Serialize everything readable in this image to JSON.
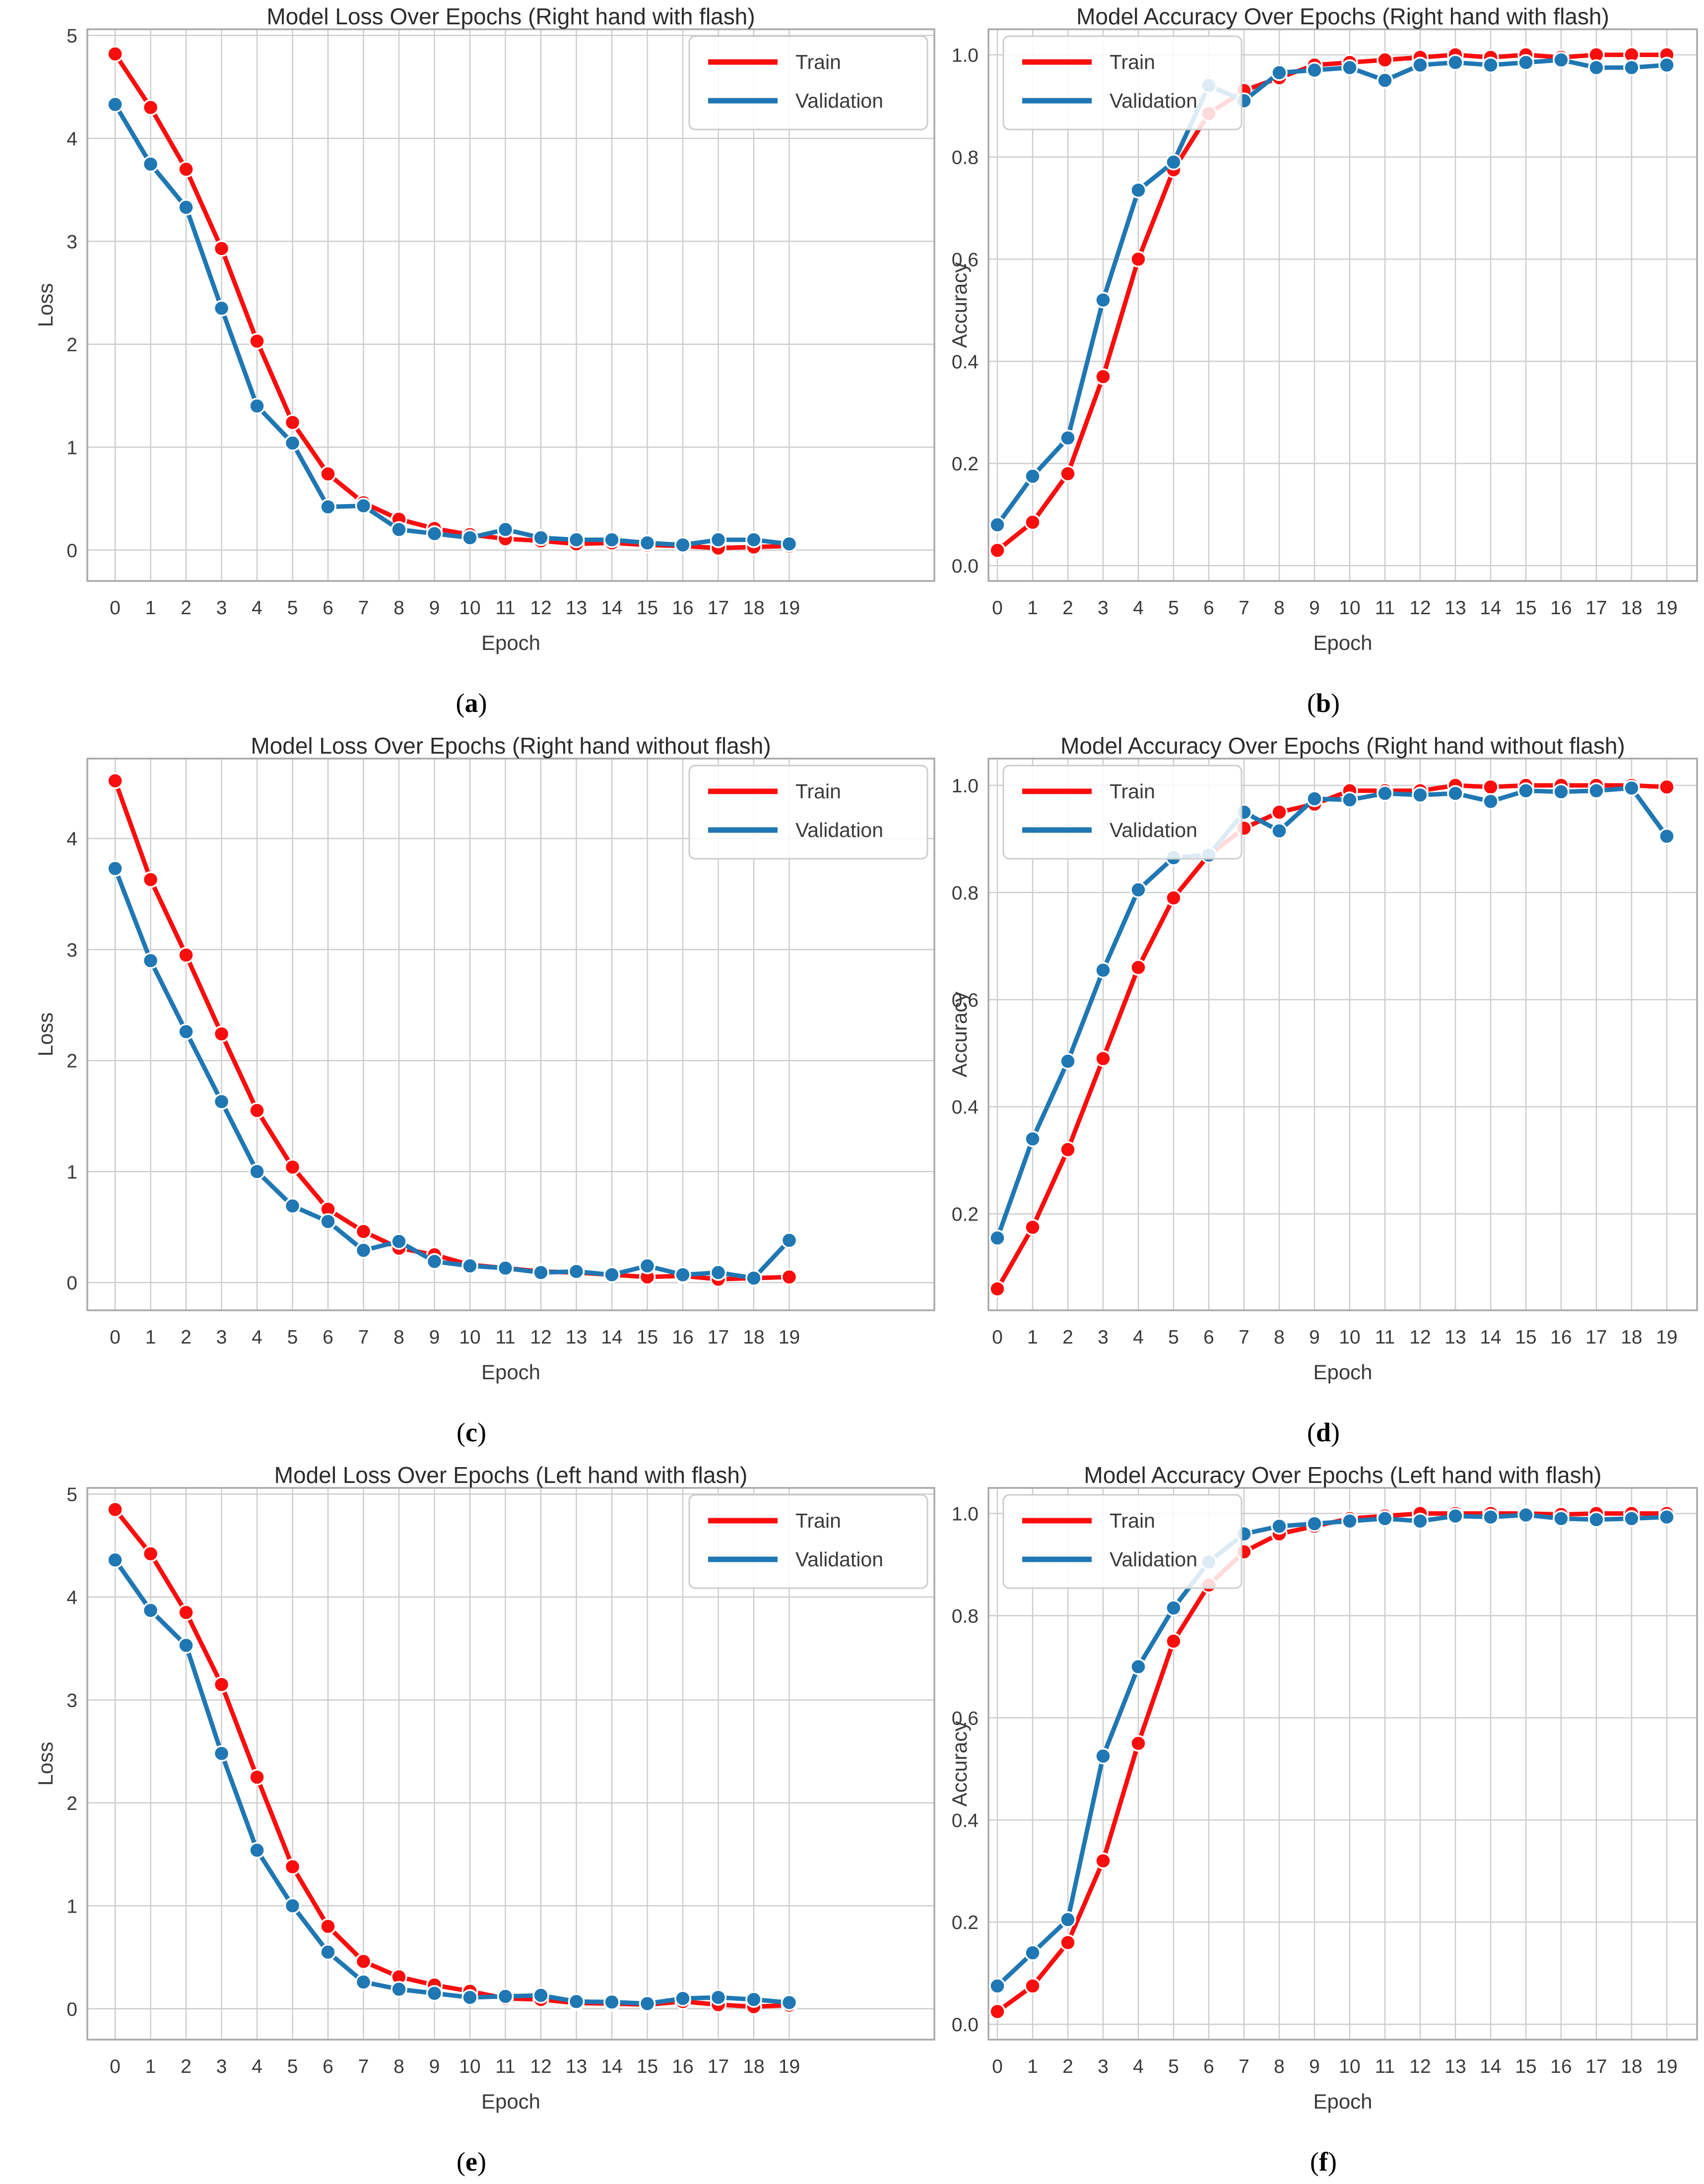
{
  "figure": {
    "background": "#ffffff"
  },
  "colors": {
    "train": "#fa0d0d",
    "validation": "#1f77b4",
    "grid": "#cdcdcd",
    "spine": "#a9a9a9",
    "text": "#3a3a3a",
    "legend_border": "#cccccc",
    "legend_bg": "rgba(255,255,255,0.85)",
    "marker_edge": "#ffffff"
  },
  "legend": {
    "train_label": "Train",
    "validation_label": "Validation"
  },
  "chart_data": [
    {
      "type": "line",
      "title": "Model Loss Over Epochs (Right hand with flash)",
      "xlabel": "Epoch",
      "ylabel": "Loss",
      "x": [
        0,
        1,
        2,
        3,
        4,
        5,
        6,
        7,
        8,
        9,
        10,
        11,
        12,
        13,
        14,
        15,
        16,
        17,
        18,
        19
      ],
      "xtick_labels": [
        "0",
        "1",
        "2",
        "3",
        "4",
        "5",
        "6",
        "7",
        "8",
        "9",
        "10",
        "11",
        "12",
        "13",
        "14",
        "15",
        "16",
        "17",
        "18",
        "19"
      ],
      "yticks": [
        0,
        1,
        2,
        3,
        4,
        5
      ],
      "ytick_labels": [
        "0",
        "1",
        "2",
        "3",
        "4",
        "5"
      ],
      "ylim": [
        -0.3,
        5.06
      ],
      "legend_pos": "right",
      "grid": true,
      "caption": {
        "open": "(",
        "letter": "a",
        "close": ")"
      },
      "series": [
        {
          "name": "Train",
          "color_key": "train",
          "values": [
            4.82,
            4.3,
            3.7,
            2.93,
            2.03,
            1.24,
            0.74,
            0.46,
            0.3,
            0.21,
            0.15,
            0.11,
            0.09,
            0.06,
            0.07,
            0.05,
            0.04,
            0.02,
            0.03,
            0.04
          ]
        },
        {
          "name": "Validation",
          "color_key": "validation",
          "values": [
            4.33,
            3.75,
            3.33,
            2.35,
            1.4,
            1.04,
            0.42,
            0.43,
            0.2,
            0.16,
            0.12,
            0.2,
            0.12,
            0.1,
            0.1,
            0.07,
            0.05,
            0.1,
            0.1,
            0.06
          ]
        }
      ]
    },
    {
      "type": "line",
      "title": "Model Accuracy Over Epochs (Right hand with flash)",
      "xlabel": "Epoch",
      "ylabel": "Accuracy",
      "x": [
        0,
        1,
        2,
        3,
        4,
        5,
        6,
        7,
        8,
        9,
        10,
        11,
        12,
        13,
        14,
        15,
        16,
        17,
        18,
        19
      ],
      "xtick_labels": [
        "0",
        "1",
        "2",
        "3",
        "4",
        "5",
        "6",
        "7",
        "8",
        "9",
        "10",
        "11",
        "12",
        "13",
        "14",
        "15",
        "16",
        "17",
        "18",
        "19"
      ],
      "yticks": [
        0.0,
        0.2,
        0.4,
        0.6,
        0.8,
        1.0
      ],
      "ytick_labels": [
        "0.0",
        "0.2",
        "0.4",
        "0.6",
        "0.8",
        "1.0"
      ],
      "ylim": [
        -0.03,
        1.05
      ],
      "legend_pos": "left",
      "grid": true,
      "caption": {
        "open": "(",
        "letter": "b",
        "close": ")"
      },
      "series": [
        {
          "name": "Train",
          "color_key": "train",
          "values": [
            0.03,
            0.085,
            0.18,
            0.37,
            0.6,
            0.775,
            0.885,
            0.93,
            0.955,
            0.98,
            0.985,
            0.99,
            0.995,
            1.0,
            0.995,
            1.0,
            0.995,
            1.0,
            1.0,
            1.0
          ]
        },
        {
          "name": "Validation",
          "color_key": "validation",
          "values": [
            0.08,
            0.175,
            0.25,
            0.52,
            0.735,
            0.79,
            0.94,
            0.91,
            0.965,
            0.97,
            0.975,
            0.95,
            0.98,
            0.985,
            0.98,
            0.985,
            0.99,
            0.975,
            0.975,
            0.98
          ]
        }
      ]
    },
    {
      "type": "line",
      "title": "Model Loss Over Epochs (Right hand without flash)",
      "xlabel": "Epoch",
      "ylabel": "Loss",
      "x": [
        0,
        1,
        2,
        3,
        4,
        5,
        6,
        7,
        8,
        9,
        10,
        11,
        12,
        13,
        14,
        15,
        16,
        17,
        18,
        19
      ],
      "xtick_labels": [
        "0",
        "1",
        "2",
        "3",
        "4",
        "5",
        "6",
        "7",
        "8",
        "9",
        "10",
        "11",
        "12",
        "13",
        "14",
        "15",
        "16",
        "17",
        "18",
        "19"
      ],
      "yticks": [
        0,
        1,
        2,
        3,
        4
      ],
      "ytick_labels": [
        "0",
        "1",
        "2",
        "3",
        "4"
      ],
      "ylim": [
        -0.25,
        4.72
      ],
      "legend_pos": "right",
      "grid": true,
      "caption": {
        "open": "(",
        "letter": "c",
        "close": ")"
      },
      "series": [
        {
          "name": "Train",
          "color_key": "train",
          "values": [
            4.52,
            3.63,
            2.95,
            2.24,
            1.55,
            1.04,
            0.66,
            0.46,
            0.31,
            0.25,
            0.16,
            0.13,
            0.1,
            0.09,
            0.07,
            0.05,
            0.06,
            0.03,
            0.04,
            0.05
          ]
        },
        {
          "name": "Validation",
          "color_key": "validation",
          "values": [
            3.73,
            2.9,
            2.26,
            1.63,
            1.0,
            0.69,
            0.55,
            0.29,
            0.37,
            0.19,
            0.15,
            0.13,
            0.09,
            0.1,
            0.07,
            0.15,
            0.07,
            0.09,
            0.04,
            0.38
          ]
        }
      ]
    },
    {
      "type": "line",
      "title": "Model Accuracy Over Epochs (Right hand without flash)",
      "xlabel": "Epoch",
      "ylabel": "Accuracy",
      "x": [
        0,
        1,
        2,
        3,
        4,
        5,
        6,
        7,
        8,
        9,
        10,
        11,
        12,
        13,
        14,
        15,
        16,
        17,
        18,
        19
      ],
      "xtick_labels": [
        "0",
        "1",
        "2",
        "3",
        "4",
        "5",
        "6",
        "7",
        "8",
        "9",
        "10",
        "11",
        "12",
        "13",
        "14",
        "15",
        "16",
        "17",
        "18",
        "19"
      ],
      "yticks": [
        0.2,
        0.4,
        0.6,
        0.8,
        1.0
      ],
      "ytick_labels": [
        "0.2",
        "0.4",
        "0.6",
        "0.8",
        "1.0"
      ],
      "ylim": [
        0.02,
        1.05
      ],
      "legend_pos": "left",
      "grid": true,
      "caption": {
        "open": "(",
        "letter": "d",
        "close": ")"
      },
      "series": [
        {
          "name": "Train",
          "color_key": "train",
          "values": [
            0.06,
            0.175,
            0.32,
            0.49,
            0.66,
            0.79,
            0.87,
            0.92,
            0.95,
            0.965,
            0.99,
            0.99,
            0.99,
            1.0,
            0.997,
            1.0,
            1.0,
            1.0,
            1.0,
            0.997
          ]
        },
        {
          "name": "Validation",
          "color_key": "validation",
          "values": [
            0.155,
            0.34,
            0.485,
            0.655,
            0.805,
            0.865,
            0.87,
            0.95,
            0.915,
            0.975,
            0.973,
            0.985,
            0.982,
            0.985,
            0.97,
            0.99,
            0.988,
            0.99,
            0.995,
            0.905
          ]
        }
      ]
    },
    {
      "type": "line",
      "title": "Model Loss Over Epochs (Left hand with flash)",
      "xlabel": "Epoch",
      "ylabel": "Loss",
      "x": [
        0,
        1,
        2,
        3,
        4,
        5,
        6,
        7,
        8,
        9,
        10,
        11,
        12,
        13,
        14,
        15,
        16,
        17,
        18,
        19
      ],
      "xtick_labels": [
        "0",
        "1",
        "2",
        "3",
        "4",
        "5",
        "6",
        "7",
        "8",
        "9",
        "10",
        "11",
        "12",
        "13",
        "14",
        "15",
        "16",
        "17",
        "18",
        "19"
      ],
      "yticks": [
        0,
        1,
        2,
        3,
        4,
        5
      ],
      "ytick_labels": [
        "0",
        "1",
        "2",
        "3",
        "4",
        "5"
      ],
      "ylim": [
        -0.3,
        5.06
      ],
      "legend_pos": "right",
      "grid": true,
      "caption": {
        "open": "(",
        "letter": "e",
        "close": ")"
      },
      "series": [
        {
          "name": "Train",
          "color_key": "train",
          "values": [
            4.85,
            4.42,
            3.85,
            3.15,
            2.25,
            1.38,
            0.8,
            0.46,
            0.31,
            0.23,
            0.17,
            0.1,
            0.09,
            0.055,
            0.05,
            0.04,
            0.07,
            0.04,
            0.02,
            0.035
          ]
        },
        {
          "name": "Validation",
          "color_key": "validation",
          "values": [
            4.36,
            3.87,
            3.53,
            2.48,
            1.54,
            1.0,
            0.55,
            0.26,
            0.19,
            0.15,
            0.11,
            0.12,
            0.13,
            0.07,
            0.065,
            0.05,
            0.1,
            0.11,
            0.09,
            0.06
          ]
        }
      ]
    },
    {
      "type": "line",
      "title": "Model Accuracy Over Epochs (Left hand with flash)",
      "xlabel": "Epoch",
      "ylabel": "Accuracy",
      "x": [
        0,
        1,
        2,
        3,
        4,
        5,
        6,
        7,
        8,
        9,
        10,
        11,
        12,
        13,
        14,
        15,
        16,
        17,
        18,
        19
      ],
      "xtick_labels": [
        "0",
        "1",
        "2",
        "3",
        "4",
        "5",
        "6",
        "7",
        "8",
        "9",
        "10",
        "11",
        "12",
        "13",
        "14",
        "15",
        "16",
        "17",
        "18",
        "19"
      ],
      "yticks": [
        0.0,
        0.2,
        0.4,
        0.6,
        0.8,
        1.0
      ],
      "ytick_labels": [
        "0.0",
        "0.2",
        "0.4",
        "0.6",
        "0.8",
        "1.0"
      ],
      "ylim": [
        -0.03,
        1.05
      ],
      "legend_pos": "left",
      "grid": true,
      "caption": {
        "open": "(",
        "letter": "f",
        "close": ")"
      },
      "series": [
        {
          "name": "Train",
          "color_key": "train",
          "values": [
            0.025,
            0.075,
            0.16,
            0.32,
            0.55,
            0.75,
            0.86,
            0.925,
            0.96,
            0.975,
            0.99,
            0.995,
            1.0,
            1.0,
            1.0,
            1.0,
            0.998,
            1.0,
            1.0,
            1.0
          ]
        },
        {
          "name": "Validation",
          "color_key": "validation",
          "values": [
            0.075,
            0.14,
            0.205,
            0.525,
            0.7,
            0.815,
            0.905,
            0.96,
            0.975,
            0.98,
            0.985,
            0.99,
            0.985,
            0.995,
            0.993,
            0.997,
            0.99,
            0.988,
            0.99,
            0.993
          ]
        }
      ]
    }
  ]
}
